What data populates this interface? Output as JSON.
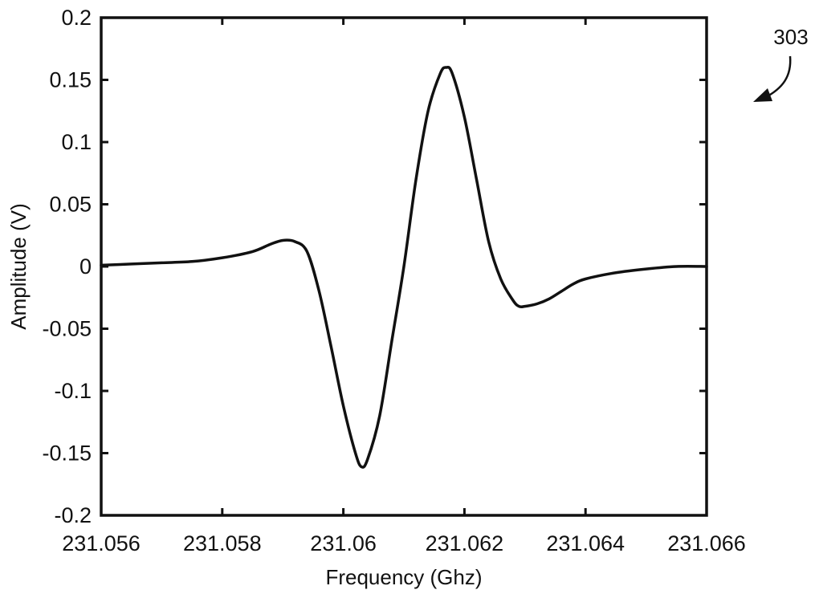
{
  "figure": {
    "reference_numeral": "303"
  },
  "chart_data": {
    "type": "line",
    "xlabel": "Frequency (Ghz)",
    "ylabel": "Amplitude (V)",
    "xlim": [
      231.056,
      231.066
    ],
    "ylim": [
      -0.2,
      0.2
    ],
    "x_ticks": [
      231.056,
      231.058,
      231.06,
      231.062,
      231.064,
      231.066
    ],
    "x_tick_labels": [
      "231.056",
      "231.058",
      "231.06",
      "231.062",
      "231.064",
      "231.066"
    ],
    "y_ticks": [
      0.2,
      0.15,
      0.1,
      0.05,
      0,
      -0.05,
      -0.1,
      -0.15,
      -0.2
    ],
    "y_tick_labels": [
      "0.2",
      "0.15",
      "0.1",
      "0.05",
      "0",
      "-0.05",
      "-0.1",
      "-0.15",
      "-0.2"
    ],
    "grid": false,
    "legend": "none",
    "line_color": "#111111",
    "series": [
      {
        "x": [
          231.056,
          231.0565,
          231.057,
          231.0575,
          231.058,
          231.0585,
          231.0588,
          231.059,
          231.0592,
          231.0594,
          231.0596,
          231.0598,
          231.06,
          231.0602,
          231.0603,
          231.0604,
          231.0606,
          231.0608,
          231.061,
          231.0612,
          231.0614,
          231.0616,
          231.0617,
          231.0618,
          231.062,
          231.0622,
          231.0624,
          231.0626,
          231.0628,
          231.0629,
          231.063,
          231.0632,
          231.0634,
          231.0636,
          231.0638,
          231.064,
          231.0645,
          231.065,
          231.0655,
          231.066
        ],
        "y": [
          0.001,
          0.002,
          0.003,
          0.004,
          0.007,
          0.012,
          0.018,
          0.021,
          0.02,
          0.012,
          -0.02,
          -0.065,
          -0.112,
          -0.15,
          -0.161,
          -0.155,
          -0.12,
          -0.06,
          0.0,
          0.07,
          0.125,
          0.155,
          0.16,
          0.155,
          0.12,
          0.07,
          0.02,
          -0.01,
          -0.027,
          -0.032,
          -0.032,
          -0.03,
          -0.026,
          -0.02,
          -0.014,
          -0.01,
          -0.005,
          -0.002,
          0.0,
          0.0
        ]
      }
    ]
  }
}
